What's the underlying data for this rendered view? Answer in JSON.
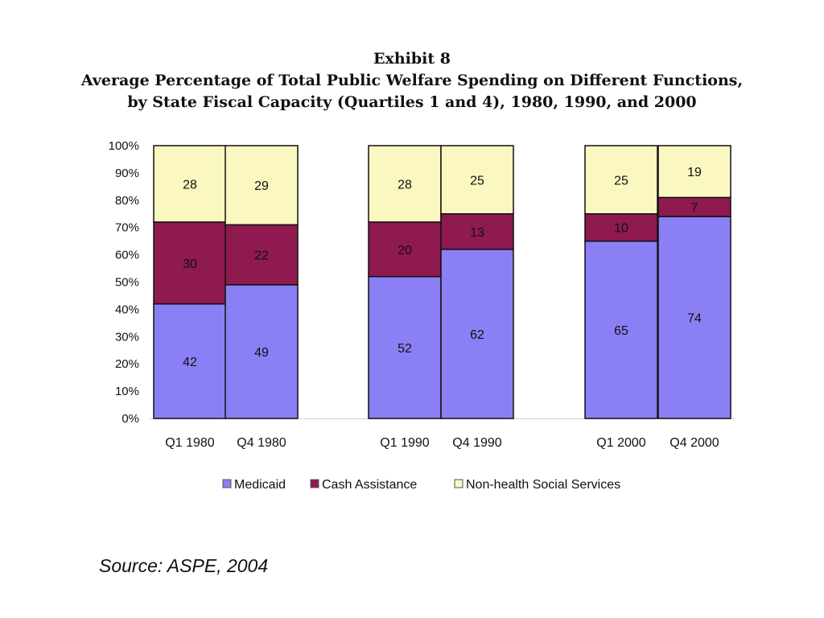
{
  "figure": {
    "exhibit": "Exhibit 8",
    "title_line1": "Average Percentage of Total Public Welfare Spending on Different Functions,",
    "title_line2": "by State Fiscal Capacity (Quartiles 1 and 4), 1980, 1990, and 2000",
    "source": "Source: ASPE, 2004"
  },
  "chart_data": {
    "type": "bar",
    "stacked": true,
    "categories": [
      "Q1 1980",
      "Q4 1980",
      "Q1 1990",
      "Q4 1990",
      "Q1 2000",
      "Q4 2000"
    ],
    "series": [
      {
        "name": "Medicaid",
        "values": [
          42,
          49,
          52,
          62,
          65,
          74
        ],
        "color": "#8B7FF5"
      },
      {
        "name": "Cash Assistance",
        "values": [
          30,
          22,
          20,
          13,
          10,
          7
        ],
        "color": "#8E1A4F"
      },
      {
        "name": "Non-health Social Services",
        "values": [
          28,
          29,
          28,
          25,
          25,
          19
        ],
        "color": "#FAF8C0"
      }
    ],
    "y_ticks": [
      "0%",
      "10%",
      "20%",
      "30%",
      "40%",
      "50%",
      "60%",
      "70%",
      "80%",
      "90%",
      "100%"
    ],
    "ylim": [
      0,
      100
    ],
    "legend_position": "bottom",
    "grid": false
  }
}
